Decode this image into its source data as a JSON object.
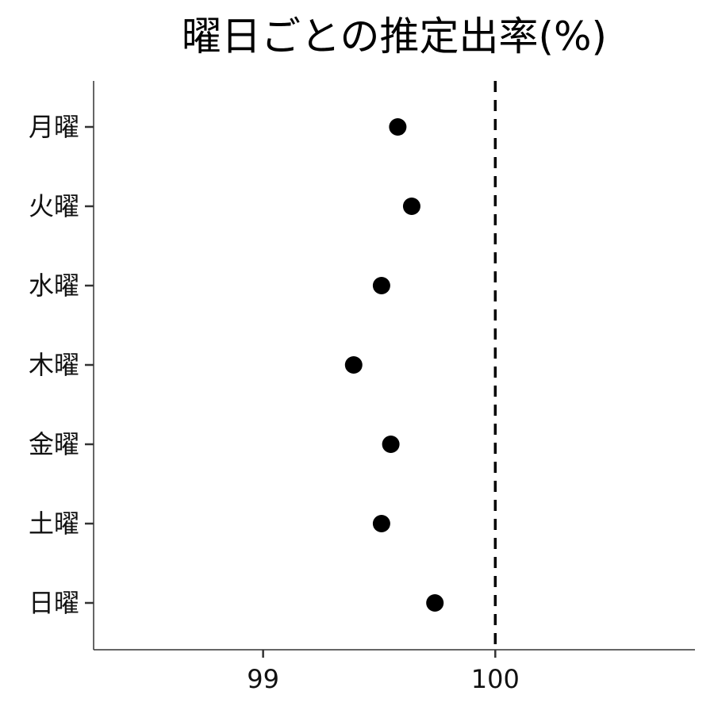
{
  "chart_data": {
    "type": "scatter",
    "title": "曜日ごとの推定出率(%)",
    "xlabel": "",
    "ylabel": "",
    "categories": [
      "月曜",
      "火曜",
      "水曜",
      "木曜",
      "金曜",
      "土曜",
      "日曜"
    ],
    "values": [
      99.58,
      99.64,
      99.51,
      99.39,
      99.55,
      99.51,
      99.74
    ],
    "xlim": [
      98.27,
      100.86
    ],
    "xticks": [
      "99",
      "100"
    ],
    "xtick_values": [
      99,
      100
    ],
    "reference_line": {
      "value": 100,
      "style": "dashed"
    },
    "grid": false,
    "point_color": "#000000",
    "axis_color": "#333333"
  }
}
